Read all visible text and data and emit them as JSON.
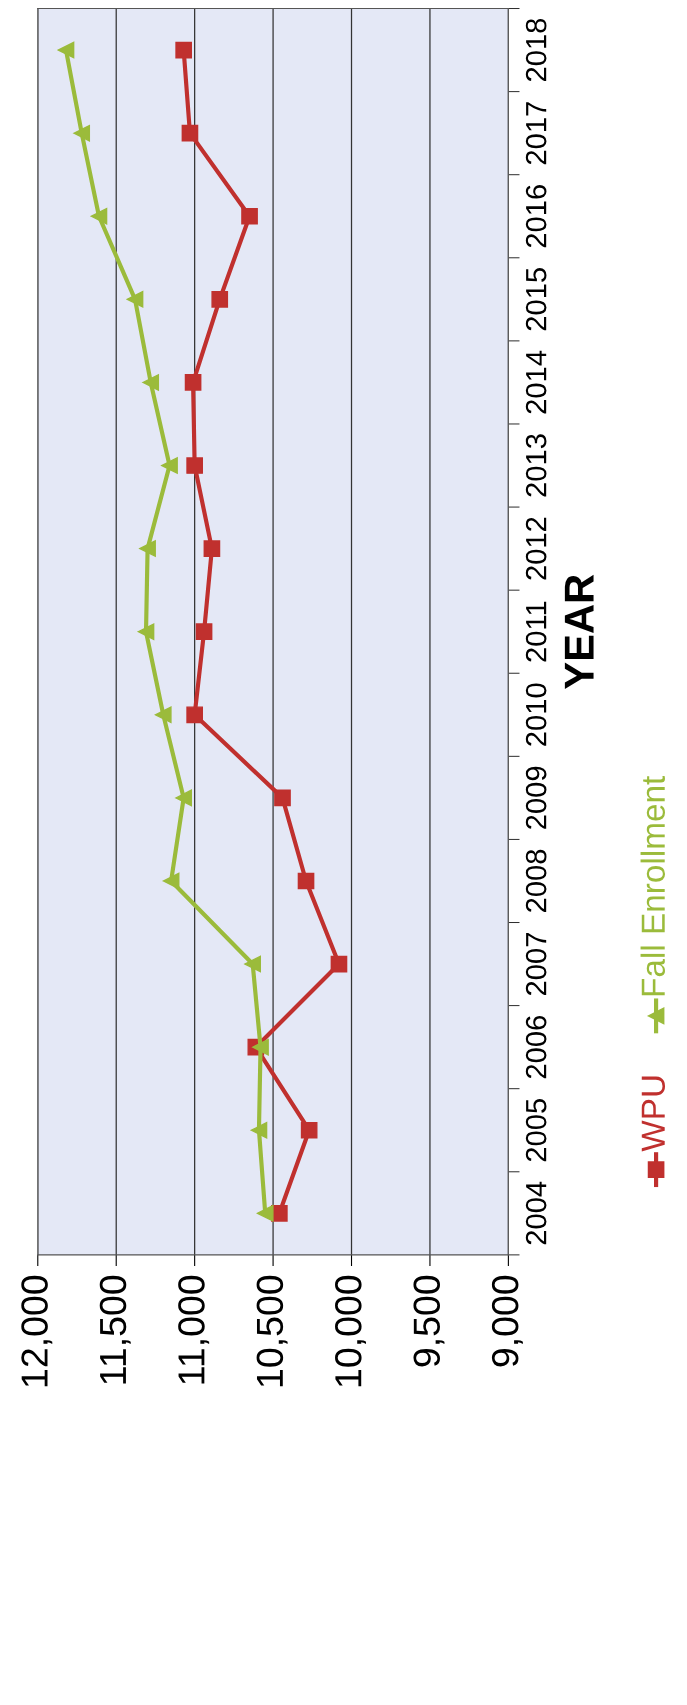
{
  "chart_data": {
    "type": "line",
    "orientation": "horizontal",
    "ylabel": "YEAR",
    "categories": [
      "2018",
      "2017",
      "2016",
      "2015",
      "2014",
      "2013",
      "2012",
      "2011",
      "2010",
      "2009",
      "2008",
      "2007",
      "2006",
      "2005",
      "2004"
    ],
    "series": [
      {
        "name": "WPU",
        "color": "#c0302e",
        "marker": "square",
        "values": [
          11070,
          11030,
          10650,
          10840,
          11010,
          11000,
          10890,
          10940,
          11000,
          10440,
          10290,
          10080,
          10610,
          10270,
          10460
        ]
      },
      {
        "name": "Fall Enrollment",
        "color": "#9bbb3b",
        "marker": "triangle",
        "values": [
          11820,
          11720,
          11610,
          11380,
          11280,
          11160,
          11300,
          11310,
          11200,
          11070,
          11150,
          10630,
          10580,
          10590,
          10550
        ]
      }
    ],
    "xlim": [
      12000,
      9000
    ],
    "xticks": [
      {
        "value": 12000,
        "label": "12,000"
      },
      {
        "value": 11500,
        "label": "11,500"
      },
      {
        "value": 11000,
        "label": "11,000"
      },
      {
        "value": 10500,
        "label": "10,500"
      },
      {
        "value": 10000,
        "label": "10,000"
      },
      {
        "value": 9500,
        "label": "9,500"
      },
      {
        "value": 9000,
        "label": "9,000"
      }
    ],
    "grid": "x",
    "legend": "right",
    "line_style": "solid"
  }
}
